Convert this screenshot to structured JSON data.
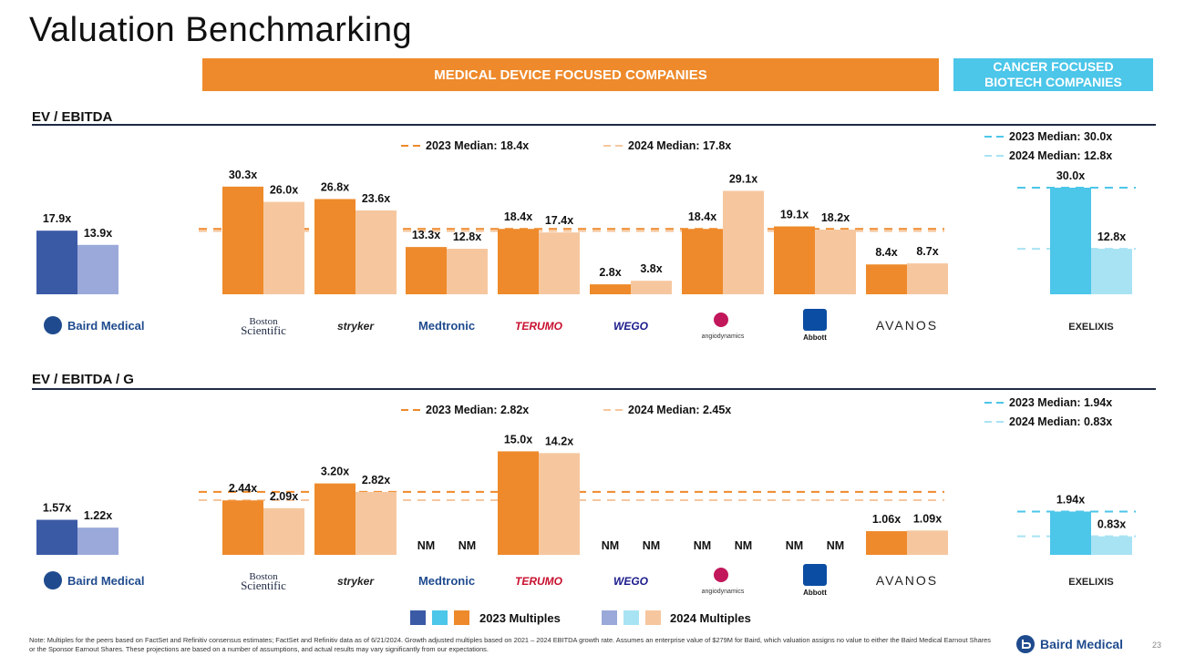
{
  "title": "Valuation Benchmarking",
  "banners": {
    "medical": "MEDICAL DEVICE  FOCUSED COMPANIES",
    "cancer_line1": "CANCER FOCUSED",
    "cancer_line2": "BIOTECH COMPANIES"
  },
  "companies": [
    "Baird Medical",
    "Boston Scientific",
    "stryker",
    "Medtronic",
    "TERUMO",
    "WEGO",
    "angiodynamics",
    "Abbott",
    "AVANOS",
    "EXELIXIS"
  ],
  "colors": {
    "baird_2023": "#3b5aa6",
    "baird_2024": "#9aa9d9",
    "med_2023": "#ee8a2b",
    "med_2024": "#f6c79f",
    "cancer_2023": "#4cc6e9",
    "cancer_2024": "#a8e3f4",
    "rule": "#1f2a44"
  },
  "chart_data": [
    {
      "type": "bar",
      "title": "EV / EBITDA",
      "categories": [
        "Baird Medical",
        "Boston Scientific",
        "Stryker",
        "Medtronic",
        "Terumo",
        "WEGO",
        "AngioDynamics",
        "Abbott",
        "Avanos",
        "Exelixis"
      ],
      "series": [
        {
          "name": "2023 Multiples",
          "values": [
            17.9,
            30.3,
            26.8,
            13.3,
            18.4,
            2.8,
            18.4,
            19.1,
            8.4,
            30.0
          ],
          "labels": [
            "17.9x",
            "30.3x",
            "26.8x",
            "13.3x",
            "18.4x",
            "2.8x",
            "18.4x",
            "19.1x",
            "8.4x",
            "30.0x"
          ]
        },
        {
          "name": "2024 Multiples",
          "values": [
            13.9,
            26.0,
            23.6,
            12.8,
            17.4,
            3.8,
            29.1,
            18.2,
            8.7,
            12.8
          ],
          "labels": [
            "13.9x",
            "26.0x",
            "23.6x",
            "12.8x",
            "17.4x",
            "3.8x",
            "29.1x",
            "18.2x",
            "8.7x",
            "12.8x"
          ]
        }
      ],
      "ylim": [
        0,
        35
      ],
      "medians": {
        "medical_2023": {
          "value": 18.4,
          "label": "2023 Median: 18.4x"
        },
        "medical_2024": {
          "value": 17.8,
          "label": "2024 Median: 17.8x"
        },
        "cancer_2023": {
          "value": 30.0,
          "label": "2023 Median: 30.0x"
        },
        "cancer_2024": {
          "value": 12.8,
          "label": "2024 Median: 12.8x"
        }
      }
    },
    {
      "type": "bar",
      "title": "EV / EBITDA / G",
      "categories": [
        "Baird Medical",
        "Boston Scientific",
        "Stryker",
        "Medtronic",
        "Terumo",
        "WEGO",
        "AngioDynamics",
        "Abbott",
        "Avanos",
        "Exelixis"
      ],
      "series": [
        {
          "name": "2023 Multiples",
          "values": [
            1.57,
            2.44,
            3.2,
            null,
            15.0,
            null,
            null,
            null,
            1.06,
            1.94
          ],
          "labels": [
            "1.57x",
            "2.44x",
            "3.20x",
            "NM",
            "15.0x",
            "NM",
            "NM",
            "NM",
            "1.06x",
            "1.94x"
          ]
        },
        {
          "name": "2024 Multiples",
          "values": [
            1.22,
            2.09,
            2.82,
            null,
            14.2,
            null,
            null,
            null,
            1.09,
            0.83
          ],
          "labels": [
            "1.22x",
            "2.09x",
            "2.82x",
            "NM",
            "14.2x",
            "NM",
            "NM",
            "NM",
            "1.09x",
            "0.83x"
          ]
        }
      ],
      "ylim": "non-linear (Terumo bars drawn compressed)",
      "medians": {
        "medical_2023": {
          "value": 2.82,
          "label": "2023 Median: 2.82x"
        },
        "medical_2024": {
          "value": 2.45,
          "label": "2024 Median: 2.45x"
        },
        "cancer_2023": {
          "value": 1.94,
          "label": "2023 Median: 1.94x"
        },
        "cancer_2024": {
          "value": 0.83,
          "label": "2024 Median: 0.83x"
        }
      }
    }
  ],
  "legend": {
    "label_2023": "2023 Multiples",
    "label_2024": "2024 Multiples"
  },
  "note": "Note: Multiples for the peers based on FactSet and Refinitiv consensus estimates; FactSet and Refinitiv data as of 6/21/2024. Growth adjusted multiples based on 2021 – 2024 EBITDA growth rate. Assumes an enterprise value of $279M for Baird, which valuation assigns no value to either the Baird Medical Earnout Shares or the Sponsor Earnout Shares. These projections are based on a number of assumptions, and actual results may vary significantly from our expectations.",
  "footer": {
    "brand": "Baird Medical",
    "page": "23"
  }
}
